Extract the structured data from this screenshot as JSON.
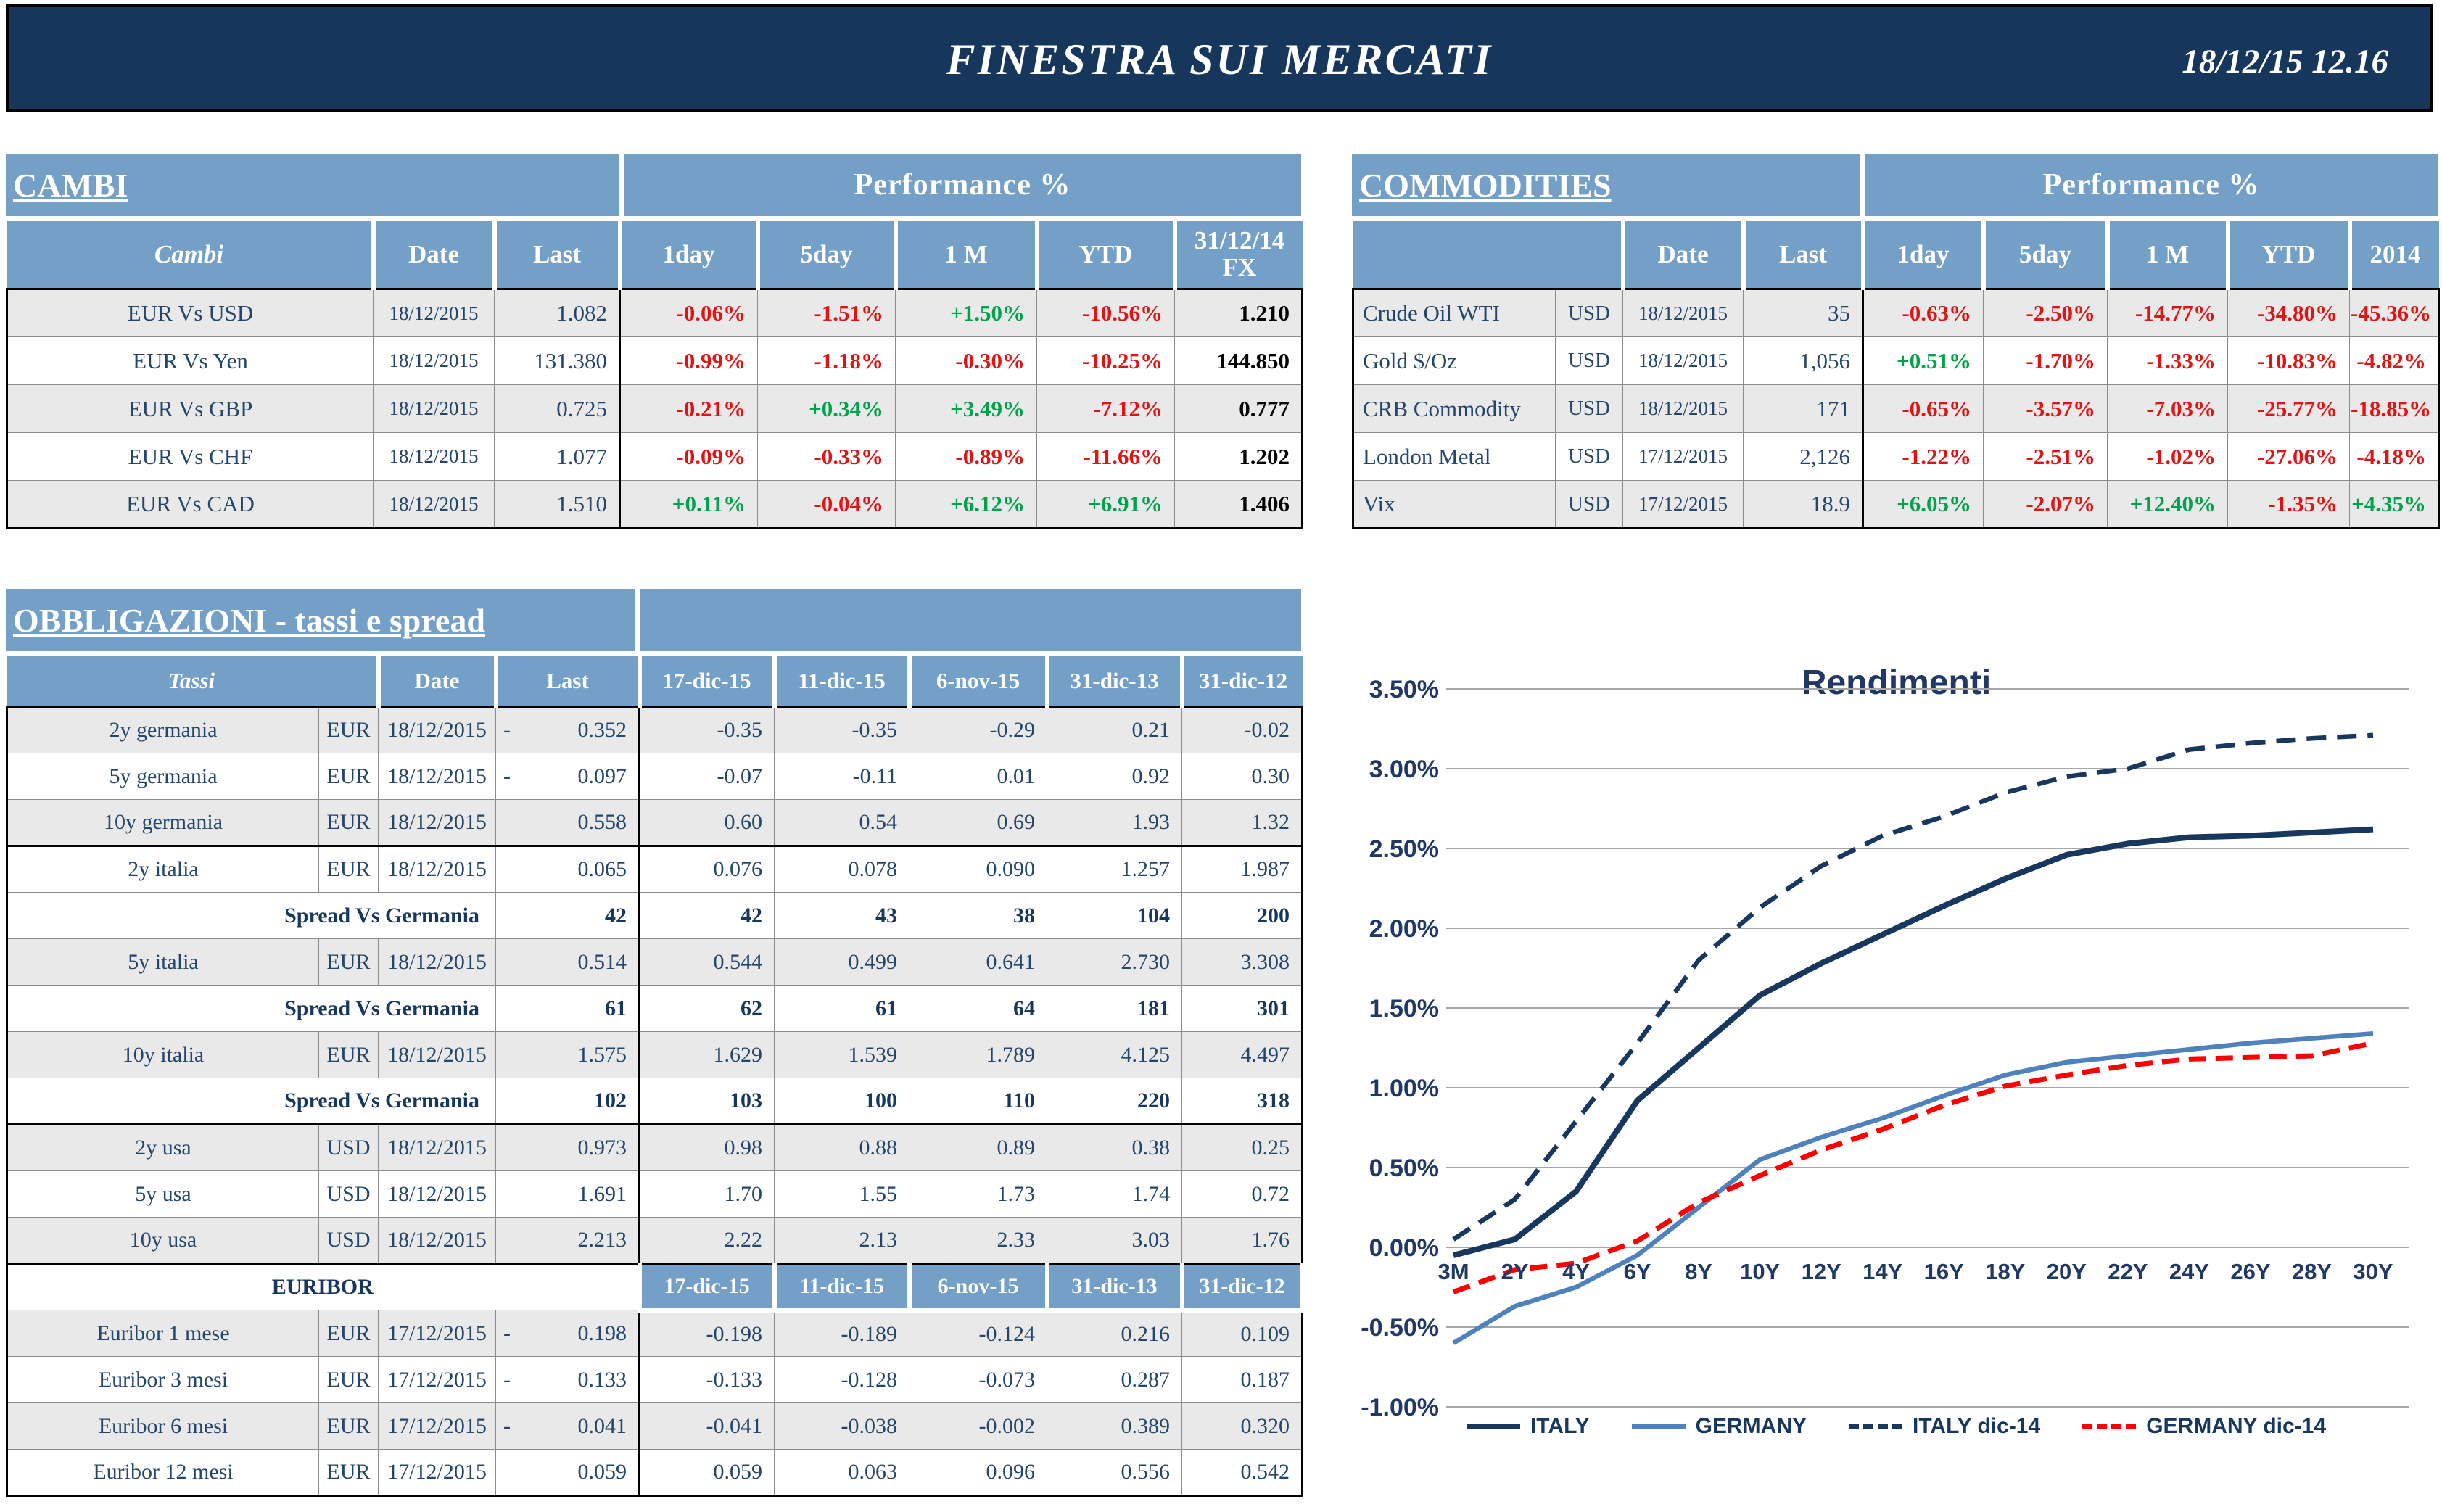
{
  "header": {
    "title": "FINESTRA SUI MERCATI",
    "datetime": "18/12/15 12.16"
  },
  "colors": {
    "header_navy": "#16365C",
    "steel_blue": "#74A0C7",
    "row_gray": "#E9E9E9",
    "negative_red": "#E01414",
    "positive_green": "#00A24B",
    "text_navy": "#24466B",
    "dark_navy": "#17375D",
    "gridline_gray": "#A6A6A6"
  },
  "cambi": {
    "title": "CAMBI",
    "perf_header": "Performance %",
    "columns": [
      "Cambi",
      "Date",
      "Last",
      "1day",
      "5day",
      "1 M",
      "YTD",
      "31/12/14\nFX"
    ],
    "rows": [
      {
        "name": "EUR Vs USD",
        "date": "18/12/2015",
        "last": "1.082",
        "perf": [
          "-0.06%",
          "-1.51%",
          "+1.50%",
          "-10.56%"
        ],
        "fx": "1.210"
      },
      {
        "name": "EUR Vs Yen",
        "date": "18/12/2015",
        "last": "131.380",
        "perf": [
          "-0.99%",
          "-1.18%",
          "-0.30%",
          "-10.25%"
        ],
        "fx": "144.850"
      },
      {
        "name": "EUR Vs GBP",
        "date": "18/12/2015",
        "last": "0.725",
        "perf": [
          "-0.21%",
          "+0.34%",
          "+3.49%",
          "-7.12%"
        ],
        "fx": "0.777"
      },
      {
        "name": "EUR Vs CHF",
        "date": "18/12/2015",
        "last": "1.077",
        "perf": [
          "-0.09%",
          "-0.33%",
          "-0.89%",
          "-11.66%"
        ],
        "fx": "1.202"
      },
      {
        "name": "EUR Vs CAD",
        "date": "18/12/2015",
        "last": "1.510",
        "perf": [
          "+0.11%",
          "-0.04%",
          "+6.12%",
          "+6.91%"
        ],
        "fx": "1.406"
      }
    ]
  },
  "commodities": {
    "title": "COMMODITIES",
    "perf_header": "Performance %",
    "columns": [
      "",
      "Date",
      "Last",
      "1day",
      "5day",
      "1 M",
      "YTD",
      "2014"
    ],
    "rows": [
      {
        "name": "Crude Oil WTI",
        "curr": "USD",
        "date": "18/12/2015",
        "last": "35",
        "perf": [
          "-0.63%",
          "-2.50%",
          "-14.77%",
          "-34.80%",
          "-45.36%"
        ]
      },
      {
        "name": "Gold $/Oz",
        "curr": "USD",
        "date": "18/12/2015",
        "last": "1,056",
        "perf": [
          "+0.51%",
          "-1.70%",
          "-1.33%",
          "-10.83%",
          "-4.82%"
        ]
      },
      {
        "name": "CRB Commodity",
        "curr": "USD",
        "date": "18/12/2015",
        "last": "171",
        "perf": [
          "-0.65%",
          "-3.57%",
          "-7.03%",
          "-25.77%",
          "-18.85%"
        ]
      },
      {
        "name": "London Metal",
        "curr": "USD",
        "date": "17/12/2015",
        "last": "2,126",
        "perf": [
          "-1.22%",
          "-2.51%",
          "-1.02%",
          "-27.06%",
          "-4.18%"
        ]
      },
      {
        "name": "Vix",
        "curr": "USD",
        "date": "17/12/2015",
        "last": "18.9",
        "perf": [
          "+6.05%",
          "-2.07%",
          "+12.40%",
          "-1.35%",
          "+4.35%"
        ]
      }
    ]
  },
  "obbligazioni": {
    "title": "OBBLIGAZIONI - tassi e spread",
    "columns": [
      "Tassi",
      "Date",
      "Last",
      "17-dic-15",
      "11-dic-15",
      "6-nov-15",
      "31-dic-13",
      "31-dic-12"
    ],
    "rows": [
      {
        "type": "rate",
        "name": "2y germania",
        "curr": "EUR",
        "date": "18/12/2015",
        "sign": "-",
        "last": "0.352",
        "hist": [
          "-0.35",
          "-0.35",
          "-0.29",
          "0.21",
          "-0.02"
        ],
        "shaded": true,
        "sep": false
      },
      {
        "type": "rate",
        "name": "5y germania",
        "curr": "EUR",
        "date": "18/12/2015",
        "sign": "-",
        "last": "0.097",
        "hist": [
          "-0.07",
          "-0.11",
          "0.01",
          "0.92",
          "0.30"
        ],
        "shaded": false,
        "sep": false
      },
      {
        "type": "rate",
        "name": "10y germania",
        "curr": "EUR",
        "date": "18/12/2015",
        "sign": "",
        "last": "0.558",
        "hist": [
          "0.60",
          "0.54",
          "0.69",
          "1.93",
          "1.32"
        ],
        "shaded": true,
        "sep": false
      },
      {
        "type": "rate",
        "name": "2y italia",
        "curr": "EUR",
        "date": "18/12/2015",
        "sign": "",
        "last": "0.065",
        "hist": [
          "0.076",
          "0.078",
          "0.090",
          "1.257",
          "1.987"
        ],
        "shaded": false,
        "sep": true
      },
      {
        "type": "spread",
        "label": "Spread Vs Germania",
        "last": "42",
        "hist": [
          "42",
          "43",
          "38",
          "104",
          "200"
        ],
        "shaded": false,
        "sep": false
      },
      {
        "type": "rate",
        "name": "5y italia",
        "curr": "EUR",
        "date": "18/12/2015",
        "sign": "",
        "last": "0.514",
        "hist": [
          "0.544",
          "0.499",
          "0.641",
          "2.730",
          "3.308"
        ],
        "shaded": true,
        "sep": false
      },
      {
        "type": "spread",
        "label": "Spread Vs Germania",
        "last": "61",
        "hist": [
          "62",
          "61",
          "64",
          "181",
          "301"
        ],
        "shaded": false,
        "sep": false
      },
      {
        "type": "rate",
        "name": "10y italia",
        "curr": "EUR",
        "date": "18/12/2015",
        "sign": "",
        "last": "1.575",
        "hist": [
          "1.629",
          "1.539",
          "1.789",
          "4.125",
          "4.497"
        ],
        "shaded": true,
        "sep": false
      },
      {
        "type": "spread",
        "label": "Spread Vs Germania",
        "last": "102",
        "hist": [
          "103",
          "100",
          "110",
          "220",
          "318"
        ],
        "shaded": false,
        "sep": false
      },
      {
        "type": "rate",
        "name": "2y usa",
        "curr": "USD",
        "date": "18/12/2015",
        "sign": "",
        "last": "0.973",
        "hist": [
          "0.98",
          "0.88",
          "0.89",
          "0.38",
          "0.25"
        ],
        "shaded": true,
        "sep": true
      },
      {
        "type": "rate",
        "name": "5y usa",
        "curr": "USD",
        "date": "18/12/2015",
        "sign": "",
        "last": "1.691",
        "hist": [
          "1.70",
          "1.55",
          "1.73",
          "1.74",
          "0.72"
        ],
        "shaded": false,
        "sep": false
      },
      {
        "type": "rate",
        "name": "10y usa",
        "curr": "USD",
        "date": "18/12/2015",
        "sign": "",
        "last": "2.213",
        "hist": [
          "2.22",
          "2.13",
          "2.33",
          "3.03",
          "1.76"
        ],
        "shaded": true,
        "sep": false
      },
      {
        "type": "subheader",
        "label": "EURIBOR",
        "dates": [
          "17-dic-15",
          "11-dic-15",
          "6-nov-15",
          "31-dic-13",
          "31-dic-12"
        ],
        "shaded": false,
        "sep": true
      },
      {
        "type": "rate",
        "name": "Euribor 1 mese",
        "curr": "EUR",
        "date": "17/12/2015",
        "sign": "-",
        "last": "0.198",
        "hist": [
          "-0.198",
          "-0.189",
          "-0.124",
          "0.216",
          "0.109"
        ],
        "shaded": true,
        "sep": false
      },
      {
        "type": "rate",
        "name": "Euribor 3 mesi",
        "curr": "EUR",
        "date": "17/12/2015",
        "sign": "-",
        "last": "0.133",
        "hist": [
          "-0.133",
          "-0.128",
          "-0.073",
          "0.287",
          "0.187"
        ],
        "shaded": false,
        "sep": false
      },
      {
        "type": "rate",
        "name": "Euribor 6 mesi",
        "curr": "EUR",
        "date": "17/12/2015",
        "sign": "-",
        "last": "0.041",
        "hist": [
          "-0.041",
          "-0.038",
          "-0.002",
          "0.389",
          "0.320"
        ],
        "shaded": true,
        "sep": false
      },
      {
        "type": "rate",
        "name": "Euribor 12 mesi",
        "curr": "EUR",
        "date": "17/12/2015",
        "sign": "",
        "last": "0.059",
        "hist": [
          "0.059",
          "0.063",
          "0.096",
          "0.556",
          "0.542"
        ],
        "shaded": false,
        "sep": false
      }
    ]
  },
  "chart_data": {
    "type": "line",
    "title": "Rendimenti",
    "categories": [
      "3M",
      "2Y",
      "4Y",
      "6Y",
      "8Y",
      "10Y",
      "12Y",
      "14Y",
      "16Y",
      "18Y",
      "20Y",
      "22Y",
      "24Y",
      "26Y",
      "28Y",
      "30Y"
    ],
    "unit": "%",
    "ylim": [
      -1.0,
      3.5
    ],
    "ytick_step": 0.5,
    "grid": true,
    "legend_position": "bottom",
    "series": [
      {
        "name": "ITALY",
        "color": "#17375E",
        "style": "solid",
        "values": [
          -0.05,
          0.05,
          0.35,
          0.92,
          1.25,
          1.58,
          1.78,
          1.96,
          2.14,
          2.31,
          2.46,
          2.53,
          2.57,
          2.58,
          2.6,
          2.62
        ]
      },
      {
        "name": "GERMANY",
        "color": "#4F81BD",
        "style": "solid",
        "values": [
          -0.6,
          -0.37,
          -0.25,
          -0.05,
          0.25,
          0.55,
          0.69,
          0.81,
          0.95,
          1.08,
          1.16,
          1.2,
          1.24,
          1.28,
          1.31,
          1.34
        ]
      },
      {
        "name": "ITALY dic-14",
        "color": "#17375E",
        "style": "dashed",
        "values": [
          0.05,
          0.3,
          0.79,
          1.28,
          1.8,
          2.13,
          2.39,
          2.58,
          2.7,
          2.85,
          2.95,
          3.0,
          3.12,
          3.16,
          3.19,
          3.21
        ]
      },
      {
        "name": "GERMANY dic-14",
        "color": "#FF0000",
        "style": "dashed",
        "values": [
          -0.28,
          -0.14,
          -0.1,
          0.04,
          0.28,
          0.45,
          0.61,
          0.74,
          0.89,
          1.01,
          1.08,
          1.14,
          1.18,
          1.19,
          1.2,
          1.28
        ]
      }
    ]
  }
}
